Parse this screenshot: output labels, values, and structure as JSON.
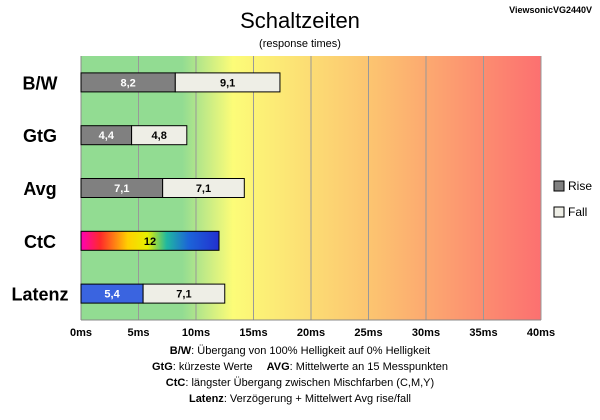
{
  "chart_data": {
    "type": "bar",
    "orientation": "horizontal",
    "stacked": true,
    "title": "Schaltzeiten",
    "subtitle": "(response times)",
    "brand_label": "ViewsonicVG2440V",
    "categories": [
      "B/W",
      "GtG",
      "Avg",
      "CtC",
      "Latenz"
    ],
    "series": [
      {
        "name": "Rise",
        "values": [
          8.2,
          4.4,
          7.1,
          null,
          5.4
        ]
      },
      {
        "name": "Fall",
        "values": [
          9.1,
          4.8,
          7.1,
          null,
          7.1
        ]
      }
    ],
    "ctc_value": 12,
    "bar_labels": {
      "rise": [
        "8,2",
        "4,4",
        "7,1",
        "",
        "5,4"
      ],
      "fall": [
        "9,1",
        "4,8",
        "7,1",
        "",
        "7,1"
      ],
      "ctc": "12"
    },
    "xlim": [
      0,
      40
    ],
    "x_ticks": [
      0,
      5,
      10,
      15,
      20,
      25,
      30,
      35,
      40
    ],
    "x_tick_labels": [
      "0ms",
      "5ms",
      "10ms",
      "15ms",
      "20ms",
      "25ms",
      "30ms",
      "35ms",
      "40ms"
    ],
    "grid": true,
    "legend_position": "right",
    "background": "gradient green-yellow-red",
    "colors": {
      "rise": "#808080",
      "fall": "#eeeee6",
      "latenz_rise": "#3a64e0",
      "bar_border": "#000000",
      "grid": "#999999",
      "gradient_green": "#92dc92",
      "gradient_yellow": "#fcfc78",
      "gradient_orange": "#fcc070",
      "gradient_red": "#fc7070"
    },
    "notes": [
      {
        "key": "B/W",
        "text": ":  Übergang von 100% Helligkeit auf 0% Helligkeit"
      },
      {
        "key": "GtG",
        "text": ": kürzeste  Werte",
        "key2": "AVG",
        "text2": ":  Mittelwerte  an 15 Messpunkten"
      },
      {
        "key": "CtC",
        "text": ": längster Übergang  zwischen Mischfarben  (C,M,Y)"
      },
      {
        "key": "Latenz",
        "text": ": Verzögerung  + Mittelwert  Avg rise/fall"
      }
    ]
  }
}
